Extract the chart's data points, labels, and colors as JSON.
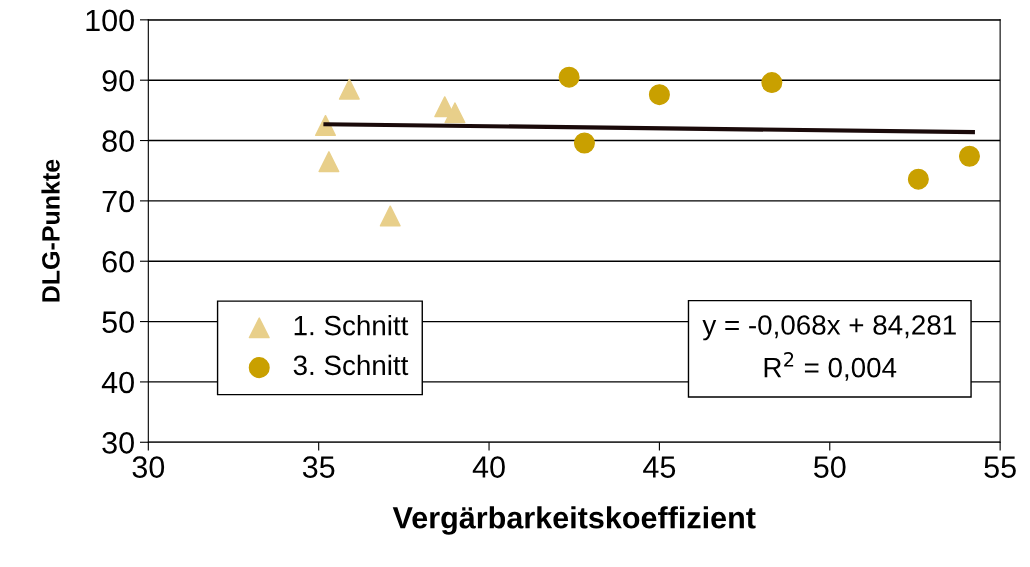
{
  "chart_data": {
    "type": "scatter",
    "xlabel": "Vergärbarkeitskoeffizient",
    "ylabel": "DLG-Punkte",
    "xlim": [
      30,
      55
    ],
    "xticks": [
      30,
      35,
      40,
      45,
      50,
      55
    ],
    "ylim": [
      30,
      100
    ],
    "yticks": [
      30,
      40,
      50,
      60,
      70,
      80,
      90,
      100
    ],
    "grid": "y",
    "legend": "bottom left",
    "series": [
      {
        "name": "1. Schnitt",
        "color": "#e8cf8a",
        "marker": "triangle",
        "x": [
          35.2,
          35.9,
          35.3,
          37.1,
          38.7,
          39.0
        ],
        "values": [
          82.5,
          88.5,
          76.5,
          67.5,
          85.6,
          84.6
        ]
      },
      {
        "name": "3. Schnitt",
        "color": "#c9a000",
        "marker": "circle",
        "x": [
          42.35,
          42.8,
          45.0,
          48.3,
          52.6,
          54.1
        ],
        "values": [
          90.5,
          79.6,
          87.6,
          89.6,
          73.6,
          77.4
        ]
      },
      {
        "type": "line",
        "color": "#1a0a0a",
        "marker": "none",
        "x": [
          35.2,
          54.2
        ],
        "values": [
          82.7,
          81.4
        ]
      }
    ],
    "annotations": [
      "y = -0,068x + 84,281\nR$^{2}$ = 0,004"
    ]
  }
}
